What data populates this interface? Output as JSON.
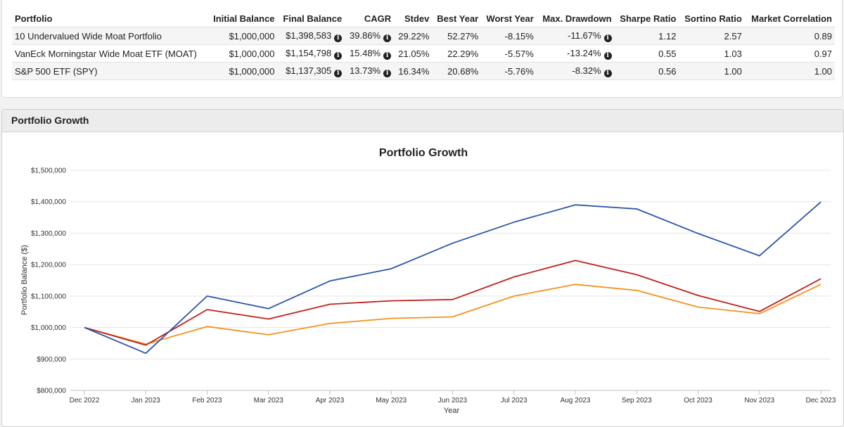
{
  "stats_table": {
    "headers": [
      "Portfolio",
      "Initial Balance",
      "Final Balance",
      "CAGR",
      "Stdev",
      "Best Year",
      "Worst Year",
      "Max. Drawdown",
      "Sharpe Ratio",
      "Sortino Ratio",
      "Market Correlation"
    ],
    "rows": [
      {
        "portfolio": "10 Undervalued Wide Moat Portfolio",
        "initial_balance": "$1,000,000",
        "final_balance": "$1,398,583",
        "cagr": "39.86%",
        "stdev": "29.22%",
        "best_year": "52.27%",
        "worst_year": "-8.15%",
        "max_drawdown": "-11.67%",
        "sharpe": "1.12",
        "sortino": "2.57",
        "market_correlation": "0.89"
      },
      {
        "portfolio": "VanEck Morningstar Wide Moat ETF (MOAT)",
        "initial_balance": "$1,000,000",
        "final_balance": "$1,154,798",
        "cagr": "15.48%",
        "stdev": "21.05%",
        "best_year": "22.29%",
        "worst_year": "-5.57%",
        "max_drawdown": "-13.24%",
        "sharpe": "0.55",
        "sortino": "1.03",
        "market_correlation": "0.97"
      },
      {
        "portfolio": "S&P 500 ETF (SPY)",
        "initial_balance": "$1,000,000",
        "final_balance": "$1,137,305",
        "cagr": "13.73%",
        "stdev": "16.34%",
        "best_year": "20.68%",
        "worst_year": "-5.76%",
        "max_drawdown": "-8.32%",
        "sharpe": "0.56",
        "sortino": "1.00",
        "market_correlation": "1.00"
      }
    ],
    "info_icon": "info-circle-icon"
  },
  "panel": {
    "title": "Portfolio Growth"
  },
  "chart_data": {
    "type": "line",
    "title": "Portfolio Growth",
    "xlabel": "Year",
    "ylabel": "Portfolio Balance ($)",
    "ylim": [
      800000,
      1500000
    ],
    "yticks": [
      800000,
      900000,
      1000000,
      1100000,
      1200000,
      1300000,
      1400000,
      1500000
    ],
    "ytick_labels": [
      "$800,000",
      "$900,000",
      "$1,000,000",
      "$1,100,000",
      "$1,200,000",
      "$1,300,000",
      "$1,400,000",
      "$1,500,000"
    ],
    "x": [
      "Dec 2022",
      "Jan 2023",
      "Feb 2023",
      "Mar 2023",
      "Apr 2023",
      "May 2023",
      "Jun 2023",
      "Jul 2023",
      "Aug 2023",
      "Sep 2023",
      "Oct 2023",
      "Nov 2023",
      "Dec 2023"
    ],
    "grid": true,
    "legend": "none",
    "series": [
      {
        "color": "#2a56a8",
        "values": [
          1000000,
          918000,
          1100000,
          1060000,
          1148000,
          1187000,
          1268000,
          1335000,
          1390000,
          1377000,
          1299000,
          1228000,
          1399000
        ]
      },
      {
        "color": "#c0211d",
        "values": [
          1000000,
          944000,
          1057000,
          1027000,
          1074000,
          1085000,
          1089000,
          1161000,
          1213000,
          1168000,
          1102000,
          1051000,
          1155000
        ]
      },
      {
        "color": "#f5921e",
        "values": [
          1000000,
          947000,
          1003000,
          977000,
          1013000,
          1029000,
          1034000,
          1100000,
          1137000,
          1118000,
          1065000,
          1044000,
          1137000
        ]
      }
    ]
  }
}
